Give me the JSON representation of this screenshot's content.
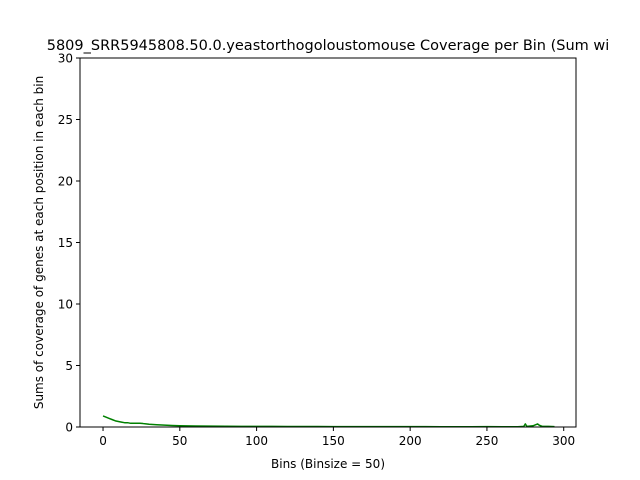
{
  "chart_data": {
    "type": "line",
    "title": "5809_SRR5945808.50.0.yeastorthogoloustomouse Coverage per Bin (Sum wi",
    "xlabel": "Bins (Binsize = 50)",
    "ylabel": "Sums of coverage of genes at each position in each bin",
    "xlim": [
      -15,
      308
    ],
    "ylim": [
      0,
      30
    ],
    "xticks": [
      0,
      50,
      100,
      150,
      200,
      250,
      300
    ],
    "yticks": [
      0,
      5,
      10,
      15,
      20,
      25,
      30
    ],
    "grid": false,
    "series": [
      {
        "color": "#008000",
        "x": [
          0,
          2,
          4,
          6,
          8,
          10,
          12,
          14,
          16,
          18,
          20,
          22,
          24,
          26,
          28,
          30,
          35,
          40,
          45,
          50,
          55,
          60,
          70,
          80,
          90,
          100,
          110,
          120,
          130,
          140,
          150,
          160,
          170,
          180,
          190,
          200,
          210,
          220,
          230,
          240,
          250,
          260,
          270,
          274,
          275,
          276,
          280,
          283,
          284,
          286,
          290,
          294
        ],
        "y": [
          0.9,
          0.8,
          0.7,
          0.6,
          0.5,
          0.45,
          0.4,
          0.35,
          0.35,
          0.3,
          0.3,
          0.3,
          0.3,
          0.28,
          0.25,
          0.22,
          0.18,
          0.15,
          0.12,
          0.1,
          0.09,
          0.08,
          0.07,
          0.06,
          0.05,
          0.05,
          0.05,
          0.04,
          0.04,
          0.04,
          0.03,
          0.03,
          0.03,
          0.03,
          0.03,
          0.03,
          0.03,
          0.02,
          0.02,
          0.02,
          0.03,
          0.02,
          0.02,
          0.05,
          0.25,
          0.05,
          0.1,
          0.25,
          0.15,
          0.05,
          0.05,
          0.03
        ]
      }
    ]
  }
}
